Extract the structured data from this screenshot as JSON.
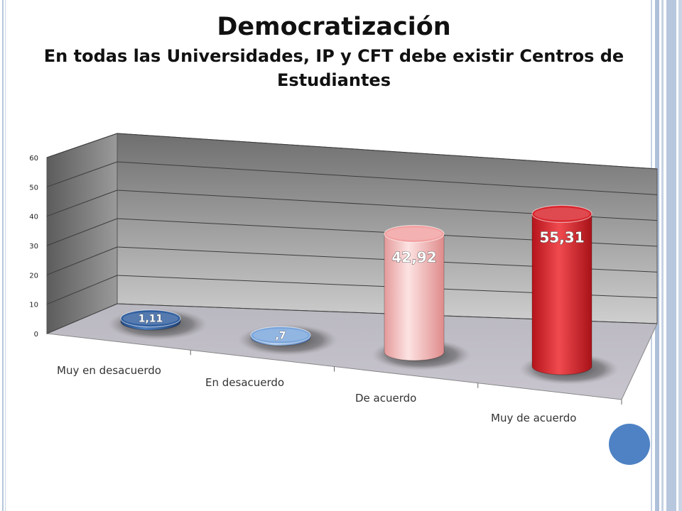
{
  "title": "Democratización",
  "subtitle": "En todas las Universidades, IP y CFT debe existir Centros de Estudiantes",
  "chart_data": {
    "type": "bar",
    "style": "3d-cylinder",
    "categories": [
      "Muy en desacuerdo",
      "En desacuerdo",
      "De acuerdo",
      "Muy de acuerdo"
    ],
    "values": [
      1.11,
      0.7,
      42.92,
      55.31
    ],
    "value_labels": [
      "1,11",
      ",7",
      "42,92",
      "55,31"
    ],
    "yticks": [
      "0",
      "10",
      "20",
      "30",
      "40",
      "50",
      "60"
    ],
    "ylim": [
      0,
      60
    ],
    "grid": true,
    "legend": "none",
    "colors": [
      "#2f5d9e",
      "#7aa6dc",
      "#f2a0a0",
      "#d8232a"
    ]
  }
}
